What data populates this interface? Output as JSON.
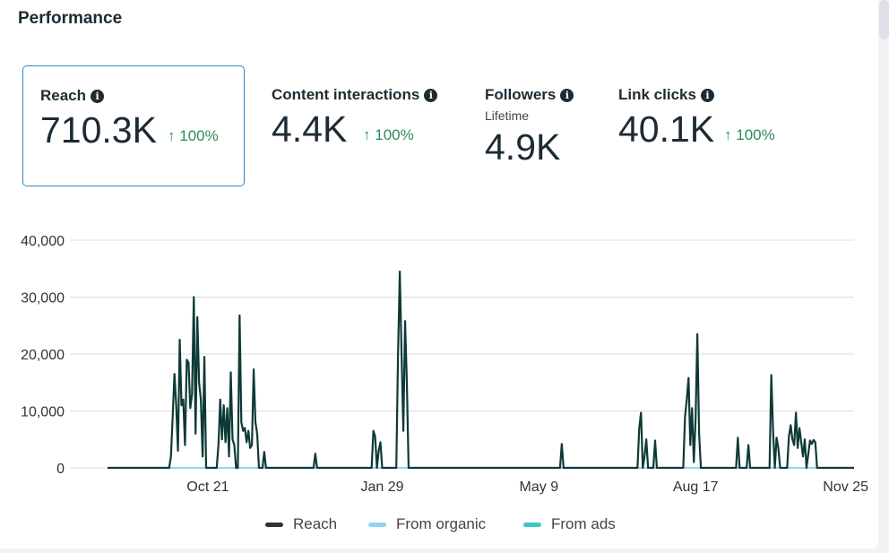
{
  "title": "Performance",
  "metrics": [
    {
      "label": "Reach",
      "value": "710.3K",
      "change": "100%",
      "selected": true
    },
    {
      "label": "Content interactions",
      "value": "4.4K",
      "change": "100%"
    },
    {
      "label": "Followers",
      "sublabel": "Lifetime",
      "value": "4.9K"
    },
    {
      "label": "Link clicks",
      "value": "40.1K",
      "change": "100%"
    }
  ],
  "icons": {
    "info": "info-icon",
    "up_arrow": "arrow-up-icon"
  },
  "colors": {
    "reach": "#0e3a36",
    "organic": "#8fd3f5",
    "ads": "#3cc8c0",
    "selected_border": "#2d88c9",
    "positive": "#2e8b57"
  },
  "chart_data": {
    "type": "line",
    "ylim": [
      0,
      40000
    ],
    "yticks": [
      "40,000",
      "30,000",
      "20,000",
      "10,000",
      "0"
    ],
    "ytick_values": [
      40000,
      30000,
      20000,
      10000,
      0
    ],
    "xticks": [
      "Oct 21",
      "Jan 29",
      "May 9",
      "Aug 17",
      "Nov 25"
    ],
    "xtick_index": [
      57,
      156,
      245,
      334,
      424
    ],
    "n_days": 424,
    "series": [
      {
        "name": "Reach",
        "points": [
          [
            0,
            0
          ],
          [
            35,
            0
          ],
          [
            36,
            2000
          ],
          [
            37,
            9000
          ],
          [
            38,
            16500
          ],
          [
            39,
            11000
          ],
          [
            40,
            3000
          ],
          [
            41,
            22500
          ],
          [
            42,
            11000
          ],
          [
            43,
            12000
          ],
          [
            44,
            4000
          ],
          [
            45,
            19000
          ],
          [
            46,
            18500
          ],
          [
            47,
            10500
          ],
          [
            48,
            13000
          ],
          [
            49,
            30000
          ],
          [
            50,
            6000
          ],
          [
            51,
            26500
          ],
          [
            52,
            15000
          ],
          [
            53,
            12000
          ],
          [
            54,
            2000
          ],
          [
            55,
            19500
          ],
          [
            56,
            0
          ],
          [
            62,
            0
          ],
          [
            63,
            4000
          ],
          [
            64,
            12000
          ],
          [
            65,
            5000
          ],
          [
            66,
            11000
          ],
          [
            67,
            4500
          ],
          [
            68,
            10500
          ],
          [
            69,
            2000
          ],
          [
            70,
            16800
          ],
          [
            71,
            5000
          ],
          [
            72,
            4000
          ],
          [
            73,
            0
          ],
          [
            74,
            0
          ],
          [
            75,
            26800
          ],
          [
            76,
            8000
          ],
          [
            77,
            6500
          ],
          [
            78,
            7000
          ],
          [
            79,
            4500
          ],
          [
            80,
            6500
          ],
          [
            81,
            3500
          ],
          [
            82,
            4000
          ],
          [
            83,
            17300
          ],
          [
            84,
            8000
          ],
          [
            85,
            6000
          ],
          [
            86,
            0
          ],
          [
            88,
            0
          ],
          [
            89,
            2800
          ],
          [
            90,
            0
          ],
          [
            117,
            0
          ],
          [
            118,
            2500
          ],
          [
            119,
            0
          ],
          [
            150,
            0
          ],
          [
            151,
            6500
          ],
          [
            152,
            5500
          ],
          [
            153,
            0
          ],
          [
            154,
            3000
          ],
          [
            155,
            4500
          ],
          [
            156,
            0
          ],
          [
            164,
            0
          ],
          [
            165,
            20000
          ],
          [
            166,
            34500
          ],
          [
            167,
            20000
          ],
          [
            168,
            6500
          ],
          [
            169,
            25800
          ],
          [
            170,
            15000
          ],
          [
            171,
            0
          ],
          [
            257,
            0
          ],
          [
            258,
            4200
          ],
          [
            259,
            0
          ],
          [
            301,
            0
          ],
          [
            302,
            7000
          ],
          [
            303,
            9700
          ],
          [
            304,
            0
          ],
          [
            305,
            2000
          ],
          [
            306,
            5000
          ],
          [
            307,
            0
          ],
          [
            310,
            0
          ],
          [
            311,
            4800
          ],
          [
            312,
            0
          ],
          [
            327,
            0
          ],
          [
            328,
            9000
          ],
          [
            329,
            12000
          ],
          [
            330,
            15800
          ],
          [
            331,
            4000
          ],
          [
            332,
            10500
          ],
          [
            333,
            1000
          ],
          [
            334,
            8500
          ],
          [
            335,
            23500
          ],
          [
            336,
            6000
          ],
          [
            337,
            0
          ],
          [
            357,
            0
          ],
          [
            358,
            5300
          ],
          [
            359,
            0
          ],
          [
            363,
            0
          ],
          [
            364,
            4000
          ],
          [
            365,
            0
          ],
          [
            376,
            0
          ],
          [
            377,
            16300
          ],
          [
            378,
            6500
          ],
          [
            379,
            0
          ],
          [
            380,
            5300
          ],
          [
            381,
            3500
          ],
          [
            382,
            0
          ],
          [
            386,
            0
          ],
          [
            387,
            5500
          ],
          [
            388,
            7500
          ],
          [
            389,
            5000
          ],
          [
            390,
            4000
          ],
          [
            391,
            9700
          ],
          [
            392,
            3500
          ],
          [
            393,
            7000
          ],
          [
            394,
            4500
          ],
          [
            395,
            2000
          ],
          [
            396,
            5000
          ],
          [
            397,
            0
          ],
          [
            399,
            4800
          ],
          [
            400,
            4200
          ],
          [
            401,
            4900
          ],
          [
            402,
            4500
          ],
          [
            403,
            0
          ],
          [
            424,
            0
          ]
        ]
      },
      {
        "name": "From organic",
        "points": [
          [
            0,
            0
          ],
          [
            424,
            0
          ]
        ]
      },
      {
        "name": "From ads",
        "points": [
          [
            0,
            0
          ],
          [
            424,
            0
          ]
        ]
      }
    ]
  }
}
